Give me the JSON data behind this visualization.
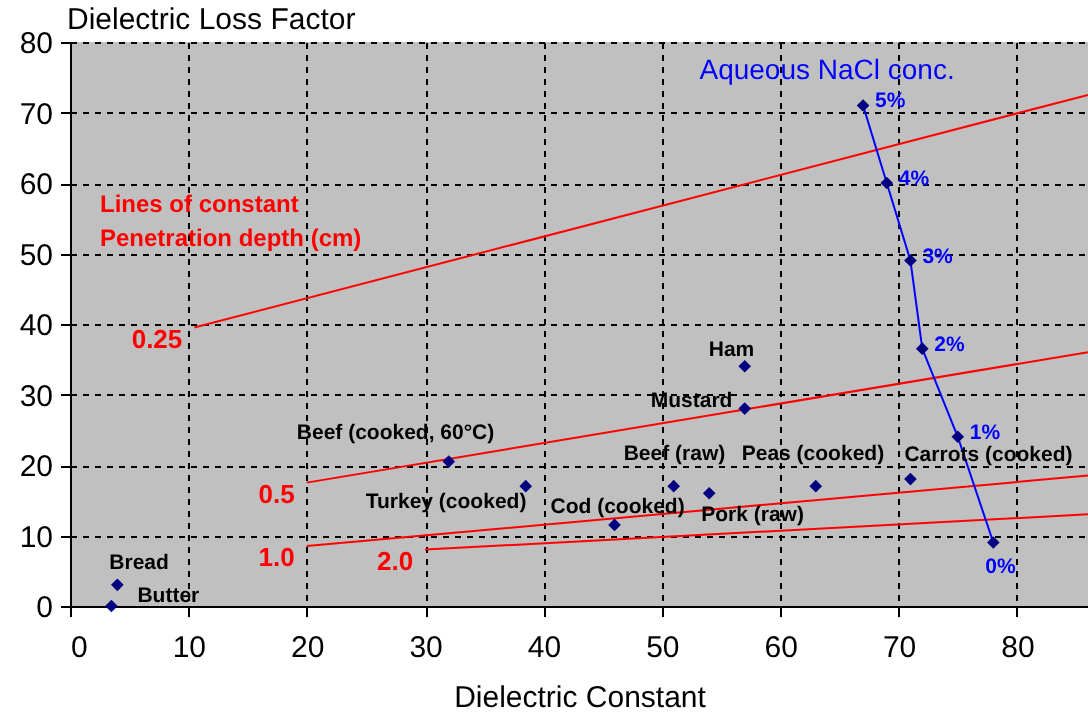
{
  "chart_data": {
    "type": "scatter",
    "xlabel": "Dielectric Constant",
    "ylabel": "Dielectric Loss Factor",
    "xlim": [
      0,
      86
    ],
    "ylim": [
      0,
      80
    ],
    "xticks": [
      0,
      10,
      20,
      30,
      40,
      50,
      60,
      70,
      80
    ],
    "yticks": [
      0,
      10,
      20,
      30,
      40,
      50,
      60,
      70,
      80
    ],
    "grid": true,
    "series": [
      {
        "type": "line",
        "name": "0.25",
        "color": "#ff0000",
        "x": [
          10.5,
          86
        ],
        "values": [
          39.5,
          72.5
        ]
      },
      {
        "type": "line",
        "name": "0.5",
        "color": "#ff0000",
        "x": [
          20,
          86
        ],
        "values": [
          17.5,
          36
        ]
      },
      {
        "type": "line",
        "name": "1.0",
        "color": "#ff0000",
        "x": [
          20,
          86
        ],
        "values": [
          8.5,
          18.5
        ]
      },
      {
        "type": "line",
        "name": "2.0",
        "color": "#ff0000",
        "x": [
          30,
          86
        ],
        "values": [
          8,
          13
        ]
      },
      {
        "marker": "diamond",
        "color": "#000080",
        "x": [
          4,
          3.5,
          32,
          38.5,
          46,
          51,
          54,
          57,
          57,
          63,
          71
        ],
        "values": [
          3,
          0,
          20.5,
          17,
          11.5,
          17,
          16,
          28,
          34,
          17,
          18
        ]
      },
      {
        "type": "line",
        "name": "Aqueous NaCl conc.",
        "marker": "diamond",
        "color": "#0000ff",
        "x": [
          78,
          75,
          72,
          71,
          69,
          67
        ],
        "values": [
          9,
          24,
          36.5,
          49,
          60,
          71
        ]
      }
    ],
    "annotations": [
      {
        "text": "Bread",
        "x": 4,
        "y": 3
      },
      {
        "text": "Butter",
        "x": 3.5,
        "y": 0
      },
      {
        "text": "Beef (cooked, 60°C)",
        "x": 32,
        "y": 20.5
      },
      {
        "text": "Turkey (cooked)",
        "x": 38.5,
        "y": 17
      },
      {
        "text": "Cod (cooked)",
        "x": 46,
        "y": 11.5
      },
      {
        "text": "Beef (raw)",
        "x": 51,
        "y": 17
      },
      {
        "text": "Pork (raw)",
        "x": 54,
        "y": 16
      },
      {
        "text": "Mustard",
        "x": 57,
        "y": 28
      },
      {
        "text": "Ham",
        "x": 57,
        "y": 34
      },
      {
        "text": "Peas (cooked)",
        "x": 63,
        "y": 17
      },
      {
        "text": "Carrots (cooked)",
        "x": 71,
        "y": 18
      },
      {
        "text": "0%",
        "x": 78,
        "y": 9
      },
      {
        "text": "1%",
        "x": 75,
        "y": 24
      },
      {
        "text": "2%",
        "x": 72,
        "y": 36.5
      },
      {
        "text": "3%",
        "x": 71,
        "y": 49
      },
      {
        "text": "4%",
        "x": 69,
        "y": 60
      },
      {
        "text": "5%",
        "x": 67,
        "y": 71
      },
      "Lines of constant\nPenetration depth (cm)"
    ]
  }
}
